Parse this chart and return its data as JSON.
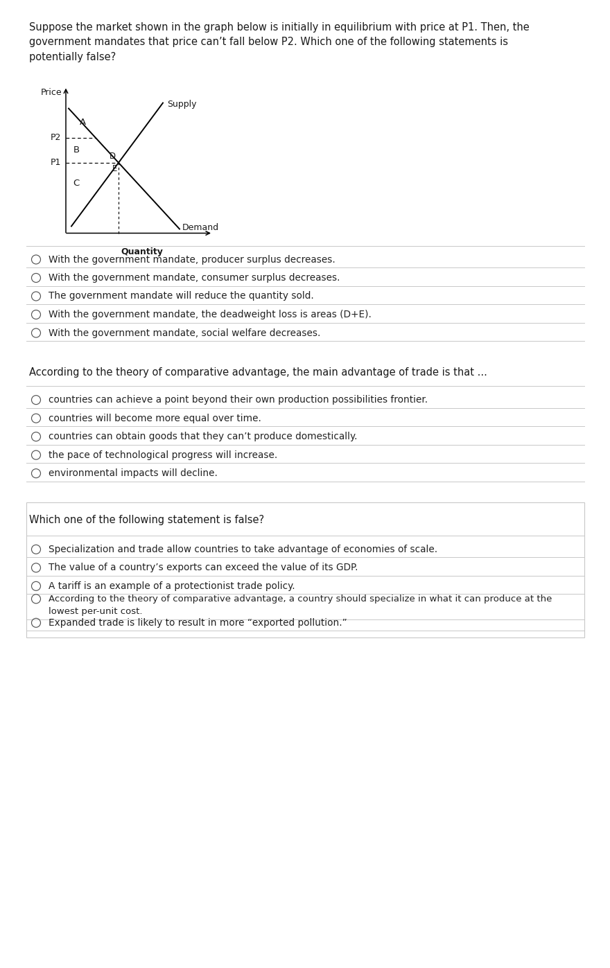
{
  "background_color": "#ffffff",
  "page_width": 8.61,
  "page_height": 13.77,
  "q1_lines": [
    "Suppose the market shown in the graph below is initially in equilibrium with price at P1. Then, the",
    "government mandates that price can’t fall below P2. Which one of the following statements is",
    "potentially false?"
  ],
  "q1_options": [
    "With the government mandate, producer surplus decreases.",
    "With the government mandate, consumer surplus decreases.",
    "The government mandate will reduce the quantity sold.",
    "With the government mandate, the deadweight loss is areas (D+E).",
    "With the government mandate, social welfare decreases."
  ],
  "q2_text": "According to the theory of comparative advantage, the main advantage of trade is that ...",
  "q2_options": [
    "countries can achieve a point beyond their own production possibilities frontier.",
    "countries will become more equal over time.",
    "countries can obtain goods that they can’t produce domestically.",
    "the pace of technological progress will increase.",
    "environmental impacts will decline."
  ],
  "q3_text": "Which one of the following statement is false?",
  "q3_options": [
    "Specialization and trade allow countries to take advantage of economies of scale.",
    "The value of a country’s exports can exceed the value of its GDP.",
    "A tariff is an example of a protectionist trade policy.",
    [
      "According to the theory of comparative advantage, a country should specialize in what it can produce at the",
      "lowest per-unit cost."
    ],
    "Expanded trade is likely to result in more “exported pollution.”"
  ],
  "graph": {
    "price_label": "Price",
    "quantity_label": "Quantity",
    "supply_label": "Supply",
    "demand_label": "Demand",
    "p1_label": "P1",
    "p2_label": "P2"
  },
  "text_color": "#1a1a1a",
  "option_text_color": "#222222",
  "separator_color": "#c8c8c8",
  "circle_color": "#555555",
  "font_size_question": 10.5,
  "font_size_option": 9.8,
  "font_size_graph": 9.0
}
